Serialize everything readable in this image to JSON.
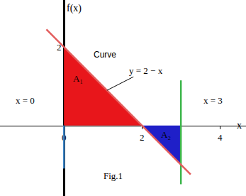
{
  "chart_data": {
    "type": "line",
    "caption": "Fig.1",
    "x_label": "x",
    "y_label": "f(x)",
    "xlim": [
      -1.64,
      4.67
    ],
    "ylim": [
      -1.8,
      3.2
    ],
    "xticks": [
      0,
      2,
      4
    ],
    "yticks": [
      2
    ],
    "grid": false,
    "curve": {
      "label": "y = 2 − x",
      "note": "Curve",
      "x": [
        -0.45,
        3.25
      ],
      "values": [
        2.45,
        -1.25
      ],
      "color": "#e35d5d"
    },
    "areas": [
      {
        "label": "A₁",
        "x": [
          0,
          0,
          2
        ],
        "values": [
          0,
          2,
          0
        ],
        "color": "#e8161b"
      },
      {
        "label": "A₂",
        "x": [
          2,
          3,
          3
        ],
        "values": [
          0,
          -1,
          0
        ],
        "color": "#1f1fc8"
      }
    ],
    "lines": [
      {
        "label": "x = 0",
        "x": 0,
        "values": [
          0,
          -1.1
        ],
        "color": "#3f86c6"
      },
      {
        "label": "x = 3",
        "x": 3,
        "values": [
          1.15,
          -1.5
        ],
        "color": "#3bb54a"
      }
    ]
  }
}
